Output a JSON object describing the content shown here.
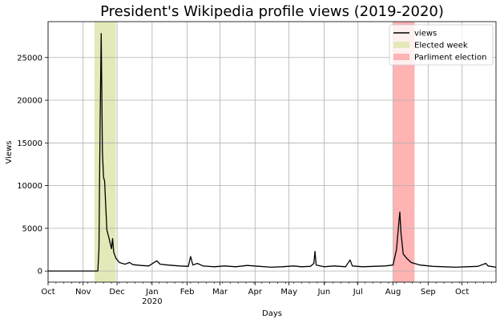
{
  "chart_data": {
    "type": "line",
    "title": "President's Wikipedia profile views (2019-2020)",
    "xlabel": "Days",
    "ylabel": "Views",
    "xlim": [
      "2019-10-01",
      "2020-10-31"
    ],
    "ylim": [
      -1300,
      29200
    ],
    "grid": true,
    "legend_position": "top-right",
    "x_ticks": [
      {
        "date": "2019-10-01",
        "label": "Oct"
      },
      {
        "date": "2019-11-01",
        "label": "Nov"
      },
      {
        "date": "2019-12-01",
        "label": "Dec"
      },
      {
        "date": "2020-01-01",
        "label": "Jan",
        "sublabel": "2020"
      },
      {
        "date": "2020-02-01",
        "label": "Feb"
      },
      {
        "date": "2020-03-01",
        "label": "Mar"
      },
      {
        "date": "2020-04-01",
        "label": "Apr"
      },
      {
        "date": "2020-05-01",
        "label": "May"
      },
      {
        "date": "2020-06-01",
        "label": "Jun"
      },
      {
        "date": "2020-07-01",
        "label": "Jul"
      },
      {
        "date": "2020-08-01",
        "label": "Aug"
      },
      {
        "date": "2020-09-01",
        "label": "Sep"
      },
      {
        "date": "2020-10-01",
        "label": "Oct"
      }
    ],
    "y_ticks": [
      0,
      5000,
      10000,
      15000,
      20000,
      25000
    ],
    "series": [
      {
        "name": "views",
        "color": "#000000",
        "points": [
          [
            "2019-10-01",
            0
          ],
          [
            "2019-11-14",
            0
          ],
          [
            "2019-11-15",
            2500
          ],
          [
            "2019-11-16",
            17000
          ],
          [
            "2019-11-17",
            27800
          ],
          [
            "2019-11-18",
            14000
          ],
          [
            "2019-11-19",
            11000
          ],
          [
            "2019-11-20",
            10500
          ],
          [
            "2019-11-21",
            7500
          ],
          [
            "2019-11-22",
            4800
          ],
          [
            "2019-11-24",
            3800
          ],
          [
            "2019-11-26",
            2600
          ],
          [
            "2019-11-27",
            3800
          ],
          [
            "2019-11-28",
            2200
          ],
          [
            "2019-11-30",
            1500
          ],
          [
            "2019-12-03",
            1000
          ],
          [
            "2019-12-08",
            800
          ],
          [
            "2019-12-12",
            1000
          ],
          [
            "2019-12-15",
            750
          ],
          [
            "2019-12-22",
            650
          ],
          [
            "2019-12-29",
            600
          ],
          [
            "2020-01-05",
            1200
          ],
          [
            "2020-01-08",
            800
          ],
          [
            "2020-01-15",
            700
          ],
          [
            "2020-01-25",
            600
          ],
          [
            "2020-02-02",
            550
          ],
          [
            "2020-02-04",
            1700
          ],
          [
            "2020-02-06",
            700
          ],
          [
            "2020-02-10",
            900
          ],
          [
            "2020-02-15",
            600
          ],
          [
            "2020-02-25",
            500
          ],
          [
            "2020-03-05",
            600
          ],
          [
            "2020-03-15",
            500
          ],
          [
            "2020-03-25",
            650
          ],
          [
            "2020-04-05",
            550
          ],
          [
            "2020-04-15",
            450
          ],
          [
            "2020-04-25",
            500
          ],
          [
            "2020-05-05",
            600
          ],
          [
            "2020-05-12",
            500
          ],
          [
            "2020-05-20",
            550
          ],
          [
            "2020-05-23",
            900
          ],
          [
            "2020-05-24",
            2300
          ],
          [
            "2020-05-25",
            700
          ],
          [
            "2020-06-01",
            500
          ],
          [
            "2020-06-10",
            600
          ],
          [
            "2020-06-20",
            500
          ],
          [
            "2020-06-24",
            1300
          ],
          [
            "2020-06-26",
            600
          ],
          [
            "2020-07-05",
            500
          ],
          [
            "2020-07-15",
            550
          ],
          [
            "2020-07-25",
            600
          ],
          [
            "2020-08-01",
            700
          ],
          [
            "2020-08-04",
            2500
          ],
          [
            "2020-08-06",
            5500
          ],
          [
            "2020-08-07",
            6900
          ],
          [
            "2020-08-08",
            4500
          ],
          [
            "2020-08-10",
            2000
          ],
          [
            "2020-08-13",
            1500
          ],
          [
            "2020-08-17",
            1000
          ],
          [
            "2020-08-25",
            700
          ],
          [
            "2020-09-05",
            550
          ],
          [
            "2020-09-15",
            500
          ],
          [
            "2020-09-25",
            450
          ],
          [
            "2020-10-05",
            500
          ],
          [
            "2020-10-15",
            550
          ],
          [
            "2020-10-22",
            900
          ],
          [
            "2020-10-24",
            600
          ],
          [
            "2020-10-31",
            450
          ]
        ]
      }
    ],
    "spans": [
      {
        "name": "Elected week",
        "start": "2019-11-11",
        "end": "2019-11-30",
        "color": "#e5e8b8"
      },
      {
        "name": "Parliment election",
        "start": "2020-08-01",
        "end": "2020-08-20",
        "color": "#ffb3b3"
      }
    ]
  }
}
